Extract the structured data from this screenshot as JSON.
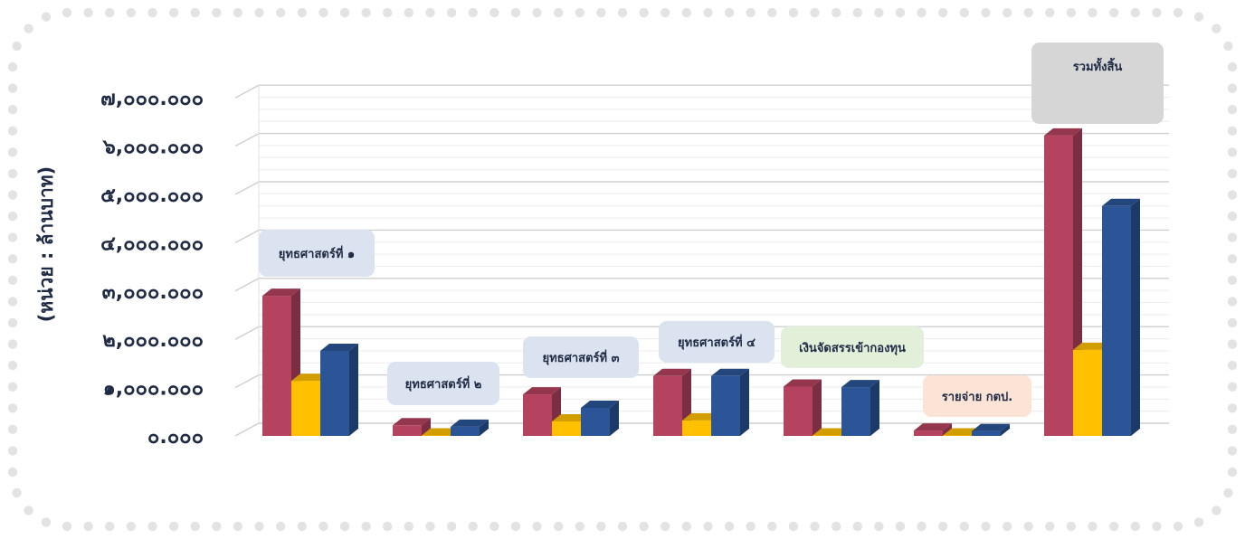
{
  "colors": {
    "series_1": "#b5425f",
    "series_2": "#ffc000",
    "series_3": "#2b5597",
    "frame_dots": "#e3e3e3",
    "grid": "#d9d9d9"
  },
  "chart_data": {
    "type": "bar",
    "title": "",
    "ylabel": "(หน่วย : ล้านบาท)",
    "xlabel": "",
    "ylim": [
      0,
      7000
    ],
    "y_ticks": [
      "๐.๐๐๐",
      "๑,๐๐๐.๐๐๐",
      "๒,๐๐๐.๐๐๐",
      "๓,๐๐๐.๐๐๐",
      "๔,๐๐๐.๐๐๐",
      "๕,๐๐๐.๐๐๐",
      "๖,๐๐๐.๐๐๐",
      "๗,๐๐๐.๐๐๐"
    ],
    "grid": true,
    "legend": "none",
    "categories": [
      "ยุทธศาสตร์ที่ ๑",
      "ยุทธศาสตร์ที่ ๒",
      "ยุทธศาสตร์ที่ ๓",
      "ยุทธศาสตร์ที่ ๔",
      "เงินจัดสรรเข้ากองทุน",
      "รายจ่าย กตป.",
      "รวมทั้งสิ้น"
    ],
    "category_box_colors": [
      "#dbe3f1",
      "#dbe3f1",
      "#dbe3f1",
      "#dbe3f1",
      "#e2efd9",
      "#fbe4d5",
      "#d6d6d6"
    ],
    "series": [
      {
        "values": [
          2900,
          220,
          860,
          1240,
          1020,
          110,
          6220
        ]
      },
      {
        "values": [
          1140,
          10,
          300,
          320,
          10,
          10,
          1780
        ]
      },
      {
        "values": [
          1760,
          190,
          580,
          1240,
          1010,
          100,
          4760
        ]
      }
    ]
  }
}
